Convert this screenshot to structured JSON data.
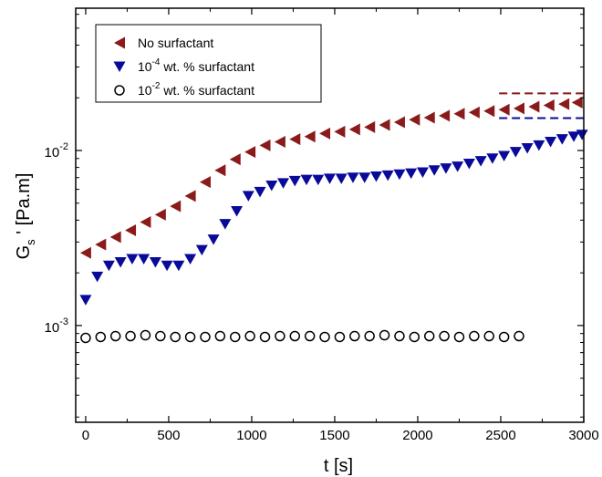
{
  "chart_data": {
    "type": "scatter",
    "xlabel": "t [s]",
    "ylabel": {
      "main": "G",
      "sub": "s",
      "rest": " ' [Pa.m]"
    },
    "xlim": [
      -60,
      3000
    ],
    "ylim": [
      0.00028,
      0.065
    ],
    "yscale": "log",
    "x_ticks": [
      0,
      500,
      1000,
      1500,
      2000,
      2500,
      3000
    ],
    "x_tick_labels": [
      "0",
      "500",
      "1000",
      "1500",
      "2000",
      "2500",
      "3000"
    ],
    "y_ticks": [
      0.001,
      0.01
    ],
    "y_tick_labels": [
      {
        "base": "10",
        "exp": "-3"
      },
      {
        "base": "10",
        "exp": "-2"
      }
    ],
    "legend": {
      "placement": "top-left"
    },
    "series": [
      {
        "name": "No surfactant",
        "marker": "triangle-left",
        "color": "#8b1a1a",
        "x": [
          0,
          90,
          180,
          270,
          360,
          450,
          540,
          630,
          720,
          810,
          900,
          990,
          1080,
          1170,
          1260,
          1350,
          1440,
          1530,
          1620,
          1710,
          1800,
          1890,
          1980,
          2070,
          2160,
          2250,
          2340,
          2430,
          2520,
          2610,
          2700,
          2790,
          2880,
          2960
        ],
        "y": [
          0.0026,
          0.0029,
          0.0032,
          0.0035,
          0.0039,
          0.0043,
          0.0048,
          0.0055,
          0.0066,
          0.0077,
          0.0089,
          0.0098,
          0.0107,
          0.0112,
          0.0116,
          0.012,
          0.0125,
          0.0128,
          0.0132,
          0.0136,
          0.014,
          0.0145,
          0.015,
          0.0154,
          0.0158,
          0.0162,
          0.0165,
          0.0168,
          0.0171,
          0.0174,
          0.0178,
          0.0181,
          0.0184,
          0.0188
        ]
      },
      {
        "name": "10⁻⁴ wt. % surfactant",
        "label_parts": {
          "base": "10",
          "exp": "-4",
          "rest": " wt. % surfactant"
        },
        "marker": "triangle-down",
        "color": "#0a0a9a",
        "x": [
          0,
          70,
          140,
          210,
          280,
          350,
          420,
          490,
          560,
          630,
          700,
          770,
          840,
          910,
          980,
          1050,
          1120,
          1190,
          1260,
          1330,
          1400,
          1470,
          1540,
          1610,
          1680,
          1750,
          1820,
          1890,
          1960,
          2030,
          2100,
          2170,
          2240,
          2310,
          2380,
          2450,
          2520,
          2590,
          2660,
          2730,
          2800,
          2870,
          2940,
          2990
        ],
        "y": [
          0.0014,
          0.0019,
          0.0022,
          0.0023,
          0.0024,
          0.0024,
          0.0023,
          0.0022,
          0.0022,
          0.0024,
          0.0027,
          0.0031,
          0.0038,
          0.0045,
          0.0055,
          0.0058,
          0.0063,
          0.0065,
          0.0067,
          0.0068,
          0.0068,
          0.0069,
          0.0069,
          0.007,
          0.007,
          0.0071,
          0.0072,
          0.0073,
          0.0074,
          0.0075,
          0.0077,
          0.0079,
          0.0081,
          0.0084,
          0.0087,
          0.009,
          0.0093,
          0.0098,
          0.0103,
          0.0107,
          0.0112,
          0.0116,
          0.012,
          0.0123
        ]
      },
      {
        "name": "10⁻² wt. % surfactant",
        "label_parts": {
          "base": "10",
          "exp": "-2",
          "rest": " wt. % surfactant"
        },
        "marker": "circle-open",
        "color": "#000000",
        "x": [
          0,
          90,
          180,
          270,
          360,
          450,
          540,
          630,
          720,
          810,
          900,
          990,
          1080,
          1170,
          1260,
          1350,
          1440,
          1530,
          1620,
          1710,
          1800,
          1890,
          1980,
          2070,
          2160,
          2250,
          2340,
          2430,
          2520,
          2610
        ],
        "y": [
          0.00085,
          0.00086,
          0.00087,
          0.00087,
          0.00088,
          0.00087,
          0.00086,
          0.00086,
          0.00086,
          0.00087,
          0.00086,
          0.00087,
          0.00086,
          0.00087,
          0.00087,
          0.00087,
          0.00086,
          0.00086,
          0.00087,
          0.00087,
          0.00088,
          0.00087,
          0.00086,
          0.00087,
          0.00087,
          0.00086,
          0.00087,
          0.00087,
          0.00086,
          0.00087
        ]
      }
    ],
    "reference_lines": [
      {
        "color": "#8b1a1a",
        "style": "dashed",
        "x": [
          2490,
          3000
        ],
        "y": 0.0212
      },
      {
        "color": "#0a0a9a",
        "style": "dashed",
        "x": [
          2490,
          3000
        ],
        "y": 0.0153
      }
    ]
  }
}
